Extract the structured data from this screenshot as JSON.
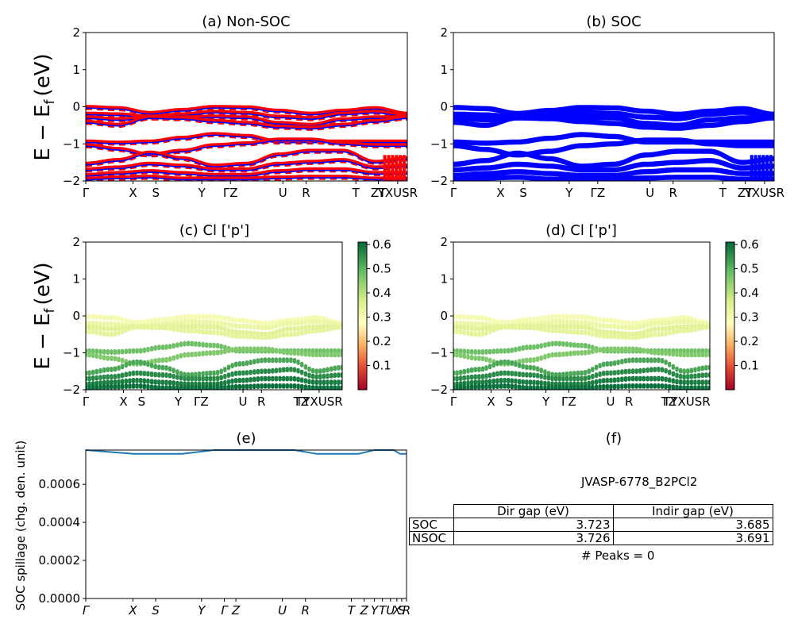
{
  "band_kpath": [
    "Γ",
    "X",
    "S",
    "Y",
    "Γ",
    "Z",
    "U",
    "R",
    "T",
    "Z",
    "T",
    "Y",
    "X",
    "U",
    "S",
    "R"
  ],
  "band_ylabel": "E − E",
  "band_ylabel_sub": "f",
  "band_ylabel_unit": "(eV)",
  "panels": {
    "a": {
      "title": "(a) Non-SOC"
    },
    "b": {
      "title": "(b) SOC"
    },
    "c": {
      "title": "(c)  Cl ['p']"
    },
    "d": {
      "title": "(d) Cl ['p']"
    },
    "e": {
      "title": "(e)",
      "ylabel": "SOC spillage (chg. den. unit)"
    },
    "f": {
      "title": "(f)"
    }
  },
  "colorbar": {
    "ticks": [
      "0.1",
      "0.2",
      "0.3",
      "0.4",
      "0.5",
      "0.6"
    ],
    "colormap": "RdYlGn",
    "range": [
      0,
      0.61
    ]
  },
  "info": {
    "material": "JVASP-6778_B2PCl2",
    "table": {
      "col_headers": [
        "Dir gap (eV)",
        "Indir gap (eV)"
      ],
      "rows": [
        {
          "label": "SOC",
          "dir": "3.723",
          "indir": "3.685"
        },
        {
          "label": "NSOC",
          "dir": "3.726",
          "indir": "3.691"
        }
      ]
    },
    "peaks": "# Peaks = 0"
  },
  "chart_data": [
    {
      "type": "line",
      "panel": "a",
      "title": "(a) Non-SOC",
      "xlabel": "",
      "ylabel": "E − E_f (eV)",
      "ylim": [
        -2,
        2
      ],
      "yticks": [
        "−2",
        "−1",
        "0",
        "1",
        "2"
      ],
      "x_tick_labels": [
        "Γ",
        "X",
        "S",
        "Y",
        "ΓZ",
        "U",
        "R",
        "T",
        "ZT",
        "YXUSR"
      ],
      "colors": {
        "up": "#ff0000",
        "down": "#0000ff"
      },
      "bands_approx": [
        [
          -0.02,
          -0.05,
          -0.18,
          -0.1,
          -0.02,
          -0.03,
          -0.12,
          -0.2,
          -0.12,
          -0.05,
          -0.2
        ],
        [
          -0.2,
          -0.22,
          -0.28,
          -0.22,
          -0.15,
          -0.18,
          -0.28,
          -0.32,
          -0.2,
          -0.15,
          -0.25
        ],
        [
          -0.3,
          -0.35,
          -0.3,
          -0.3,
          -0.28,
          -0.3,
          -0.45,
          -0.5,
          -0.35,
          -0.3,
          -0.3
        ],
        [
          -0.42,
          -0.5,
          -0.3,
          -0.32,
          -0.4,
          -0.45,
          -0.55,
          -0.58,
          -0.5,
          -0.4,
          -0.3
        ],
        [
          -0.95,
          -0.98,
          -0.95,
          -0.85,
          -0.75,
          -0.8,
          -0.95,
          -0.95,
          -0.95,
          -0.95,
          -0.95
        ],
        [
          -1.05,
          -1.15,
          -1.3,
          -1.2,
          -1.05,
          -1.0,
          -0.9,
          -0.9,
          -1.0,
          -1.05,
          -1.05
        ],
        [
          -1.55,
          -1.45,
          -1.25,
          -1.4,
          -1.6,
          -1.55,
          -1.3,
          -1.2,
          -1.2,
          -1.5,
          -1.4
        ],
        [
          -1.7,
          -1.65,
          -1.55,
          -1.6,
          -1.7,
          -1.7,
          -1.55,
          -1.5,
          -1.45,
          -1.65,
          -1.6
        ],
        [
          -1.85,
          -1.8,
          -1.75,
          -1.8,
          -1.85,
          -1.85,
          -1.75,
          -1.7,
          -1.7,
          -1.8,
          -1.8
        ],
        [
          -1.95,
          -1.92,
          -1.9,
          -1.95,
          -1.95,
          -1.95,
          -1.92,
          -1.9,
          -1.9,
          -1.95,
          -1.95
        ]
      ]
    },
    {
      "type": "line",
      "panel": "b",
      "title": "(b) SOC",
      "xlabel": "",
      "ylabel": "",
      "ylim": [
        -2,
        2
      ],
      "yticks": [
        "−2",
        "−1",
        "0",
        "1",
        "2"
      ],
      "x_tick_labels": [
        "Γ",
        "X",
        "S",
        "Y",
        "ΓZ",
        "U",
        "R",
        "T",
        "ZT",
        "YXUSR"
      ],
      "colors": {
        "bands": "#0000ff"
      }
    },
    {
      "type": "scatter",
      "panel": "c",
      "title": "(c)  Cl ['p']",
      "ylabel": "E − E_f (eV)",
      "ylim": [
        -2,
        2
      ],
      "yticks": [
        "−2",
        "−1",
        "0",
        "1",
        "2"
      ],
      "x_tick_labels": [
        "Γ",
        "X",
        "S",
        "Y",
        "ΓZ",
        "U",
        "R",
        "TZ",
        "TYXUSR"
      ],
      "color_value_by_band": [
        0.3,
        0.32,
        0.35,
        0.34,
        0.48,
        0.46,
        0.52,
        0.56,
        0.58,
        0.6
      ]
    },
    {
      "type": "scatter",
      "panel": "d",
      "title": "(d) Cl ['p']",
      "ylim": [
        -2,
        2
      ],
      "yticks": [
        "−2",
        "−1",
        "0",
        "1",
        "2"
      ],
      "x_tick_labels": [
        "Γ",
        "X",
        "S",
        "Y",
        "ΓZ",
        "U",
        "R",
        "TZ",
        "TYXUSR"
      ],
      "color_value_by_band": [
        0.3,
        0.32,
        0.35,
        0.34,
        0.48,
        0.46,
        0.52,
        0.56,
        0.58,
        0.6
      ]
    },
    {
      "type": "line",
      "panel": "e",
      "title": "(e)",
      "ylabel": "SOC spillage (chg. den. unit)",
      "ylim": [
        0,
        0.00078
      ],
      "yticks": [
        "0.0000",
        "0.0002",
        "0.0004",
        "0.0006"
      ],
      "x_tick_labels": [
        "Γ",
        "X",
        "S",
        "Y",
        "Γ",
        "Z",
        "U",
        "R",
        "T",
        "Z",
        "Y",
        "T",
        "U",
        "X",
        "S",
        "R"
      ],
      "x": [
        0,
        0.15,
        0.22,
        0.3,
        0.4,
        0.5,
        0.58,
        0.65,
        0.72,
        0.78,
        0.85,
        0.9,
        0.94,
        0.96,
        0.98,
        1.0
      ],
      "values": [
        0.00078,
        0.00076,
        0.00076,
        0.00076,
        0.00078,
        0.00078,
        0.00078,
        0.00078,
        0.00076,
        0.00076,
        0.00076,
        0.00078,
        0.00078,
        0.00078,
        0.00076,
        0.00076
      ],
      "color": "#1f77b4"
    }
  ]
}
